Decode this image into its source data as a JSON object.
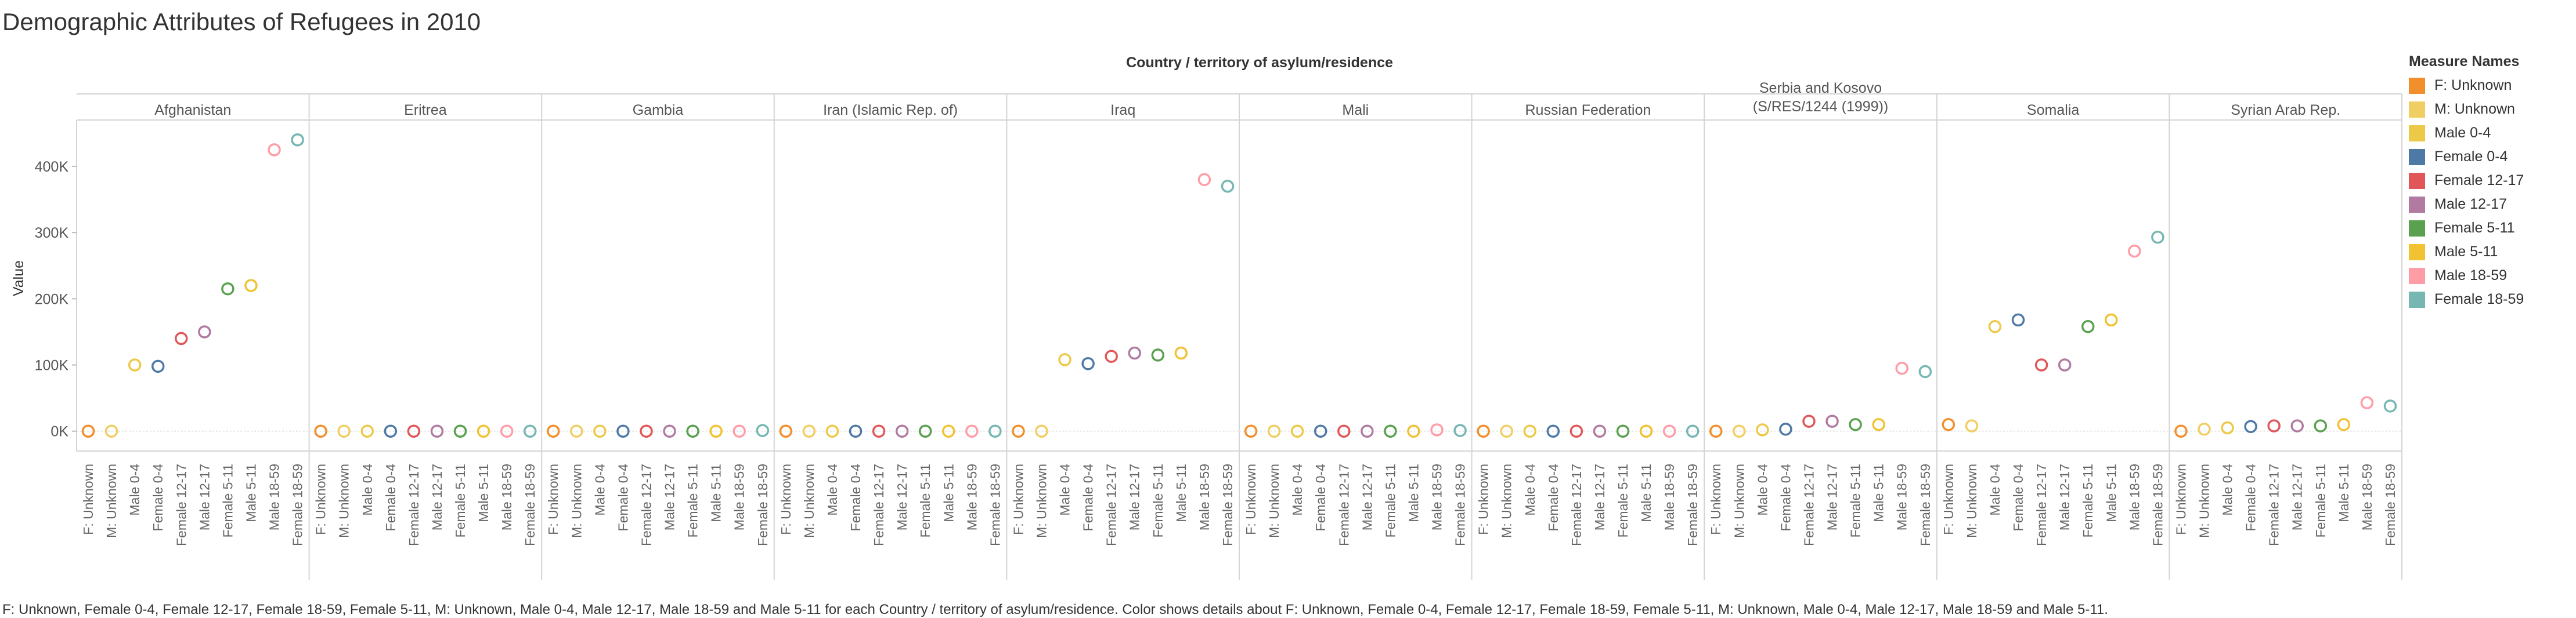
{
  "chart_data": {
    "type": "scatter",
    "title": "Demographic Attributes of Refugees in 2010",
    "column_header": "Country / territory of asylum/residence",
    "ylabel": "Value",
    "ylim": [
      -30000,
      470000
    ],
    "y_ticks": [
      0,
      100000,
      200000,
      300000,
      400000
    ],
    "y_tick_labels": [
      "0K",
      "100K",
      "200K",
      "300K",
      "400K"
    ],
    "grid": false,
    "legend_position": "right",
    "categories": [
      "F: Unknown",
      "M: Unknown",
      "Male 0-4",
      "Female 0-4",
      "Female 12-17",
      "Male 12-17",
      "Female 5-11",
      "Male 5-11",
      "Male 18-59",
      "Female 18-59"
    ],
    "series_colors": [
      "#f28e2b",
      "#f1ce63",
      "#edc948",
      "#4e79a7",
      "#e15759",
      "#b07aa1",
      "#59a14f",
      "#f1c232",
      "#ff9da7",
      "#76b7b2"
    ],
    "countries": [
      {
        "name": "Afghanistan",
        "values": [
          0,
          0,
          100000,
          98000,
          140000,
          150000,
          215000,
          220000,
          425000,
          440000
        ]
      },
      {
        "name": "Eritrea",
        "values": [
          0,
          0,
          0,
          0,
          0,
          0,
          0,
          0,
          0,
          0
        ]
      },
      {
        "name": "Gambia",
        "values": [
          0,
          0,
          0,
          0,
          0,
          0,
          0,
          0,
          0,
          1000
        ]
      },
      {
        "name": "Iran (Islamic Rep. of)",
        "values": [
          0,
          0,
          0,
          0,
          0,
          0,
          0,
          0,
          0,
          0
        ]
      },
      {
        "name": "Iraq",
        "values": [
          0,
          0,
          108000,
          102000,
          113000,
          118000,
          115000,
          118000,
          380000,
          370000
        ]
      },
      {
        "name": "Mali",
        "values": [
          0,
          0,
          0,
          0,
          0,
          0,
          0,
          0,
          2000,
          1000
        ]
      },
      {
        "name": "Russian Federation",
        "values": [
          0,
          0,
          0,
          0,
          0,
          0,
          0,
          0,
          0,
          0
        ]
      },
      {
        "name": "Serbia and Kosovo (S/RES/1244 (1999))",
        "values": [
          0,
          0,
          2000,
          3000,
          15000,
          15000,
          10000,
          10000,
          95000,
          90000
        ]
      },
      {
        "name": "Somalia",
        "values": [
          10000,
          8000,
          158000,
          168000,
          100000,
          100000,
          158000,
          168000,
          272000,
          293000
        ]
      },
      {
        "name": "Syrian Arab Rep.",
        "values": [
          0,
          3000,
          5000,
          7000,
          8000,
          8000,
          8000,
          10000,
          43000,
          38000
        ]
      }
    ],
    "caption": "F: Unknown, Female 0-4, Female 12-17, Female 18-59, Female 5-11, M: Unknown, Male 0-4, Male 12-17, Male 18-59 and Male 5-11 for each Country / territory of asylum/residence.  Color shows details about F: Unknown, Female 0-4, Female 12-17, Female 18-59, Female 5-11, M: Unknown, Male 0-4, Male 12-17, Male 18-59 and Male 5-11."
  },
  "legend": {
    "title": "Measure Names",
    "items": [
      {
        "label": "F: Unknown",
        "color": "#f28e2b"
      },
      {
        "label": "M: Unknown",
        "color": "#f1ce63"
      },
      {
        "label": "Male 0-4",
        "color": "#edc948"
      },
      {
        "label": "Female 0-4",
        "color": "#4e79a7"
      },
      {
        "label": "Female 12-17",
        "color": "#e15759"
      },
      {
        "label": "Male 12-17",
        "color": "#b07aa1"
      },
      {
        "label": "Female 5-11",
        "color": "#59a14f"
      },
      {
        "label": "Male 5-11",
        "color": "#f1c232"
      },
      {
        "label": "Male 18-59",
        "color": "#ff9da7"
      },
      {
        "label": "Female 18-59",
        "color": "#76b7b2"
      }
    ]
  }
}
